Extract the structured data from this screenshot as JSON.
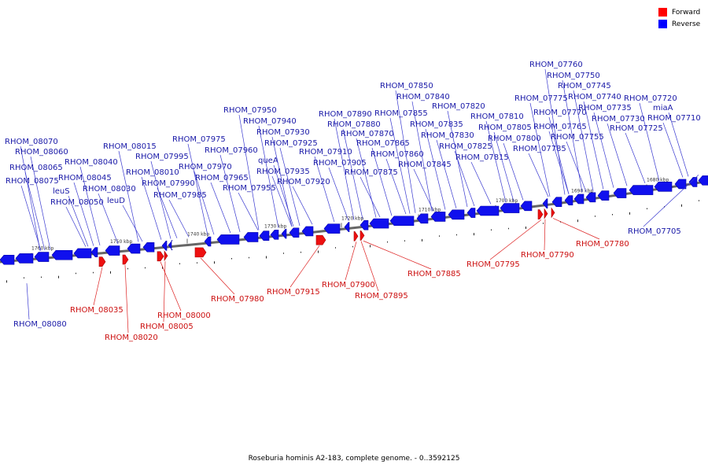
{
  "legend": {
    "forward_label": "Forward",
    "reverse_label": "Reverse",
    "forward_color": "#ff0000",
    "reverse_color": "#0000ff"
  },
  "caption": "Roseburia hominis A2-183, complete genome. - 0..3592125",
  "scale_ticks": [
    "1760 kbp",
    "1750 kbp",
    "1740 kbp",
    "1730 kbp",
    "1720 kbp",
    "1710 kbp",
    "1700 kbp",
    "1690 kbp",
    "1680 kbp"
  ],
  "reverse_genes": [
    "RHOM_08070",
    "RHOM_08060",
    "RHOM_08065",
    "RHOM_08075",
    "RHOM_08040",
    "RHOM_08045",
    "leuS",
    "RHOM_08050",
    "RHOM_08030",
    "leuD",
    "RHOM_08015",
    "RHOM_08010",
    "RHOM_07995",
    "RHOM_07990",
    "RHOM_07985",
    "RHOM_07975",
    "RHOM_07970",
    "RHOM_07965",
    "RHOM_07960",
    "RHOM_07955",
    "RHOM_07950",
    "RHOM_07940",
    "queA",
    "RHOM_07930",
    "RHOM_07925",
    "RHOM_07935",
    "RHOM_07920",
    "RHOM_07910",
    "RHOM_07905",
    "RHOM_07890",
    "RHOM_07880",
    "RHOM_07870",
    "RHOM_07875",
    "RHOM_07865",
    "RHOM_07860",
    "RHOM_07850",
    "RHOM_07840",
    "RHOM_07855",
    "RHOM_07845",
    "RHOM_07835",
    "RHOM_07830",
    "RHOM_07825",
    "RHOM_07820",
    "RHOM_07815",
    "RHOM_07810",
    "RHOM_07805",
    "RHOM_07800",
    "RHOM_07785",
    "RHOM_07775",
    "RHOM_07770",
    "RHOM_07765",
    "RHOM_07760",
    "RHOM_07750",
    "RHOM_07745",
    "RHOM_07755",
    "RHOM_07740",
    "RHOM_07735",
    "RHOM_07730",
    "RHOM_07725",
    "RHOM_07720",
    "miaA",
    "RHOM_07710",
    "RHOM_07705",
    "RHOM_08080"
  ],
  "forward_genes": [
    "RHOM_08035",
    "RHOM_08020",
    "RHOM_08000",
    "RHOM_08005",
    "RHOM_07980",
    "RHOM_07915",
    "RHOM_07900",
    "RHOM_07895",
    "RHOM_07885",
    "RHOM_07795",
    "RHOM_07790",
    "RHOM_07780"
  ]
}
